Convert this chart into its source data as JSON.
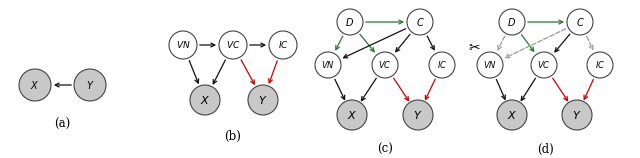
{
  "bg": "#ffffff",
  "node_gray": "#c8c8c8",
  "node_white": "#ffffff",
  "col_black": "#111111",
  "col_red": "#cc0000",
  "col_green": "#2a7a2a",
  "col_dashed": "#999999",
  "panels": [
    "(a)",
    "(b)",
    "(c)",
    "(d)"
  ]
}
